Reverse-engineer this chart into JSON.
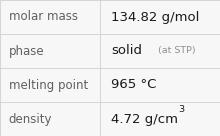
{
  "rows": [
    {
      "label": "molar mass",
      "value": "134.82 g/mol",
      "value_parts": null
    },
    {
      "label": "phase",
      "value_main": "solid",
      "value_sub": "(at STP)",
      "value_parts": "phase"
    },
    {
      "label": "melting point",
      "value": "965 °C",
      "value_parts": null
    },
    {
      "label": "density",
      "value_main": "4.72 g/cm",
      "value_sup": "3",
      "value_parts": "density"
    }
  ],
  "bg_color": "#f7f7f7",
  "cell_bg_color": "#f7f7f7",
  "border_color": "#d0d0d0",
  "label_color": "#606060",
  "value_color": "#1a1a1a",
  "sub_color": "#909090",
  "col_split": 0.455,
  "label_fontsize": 8.5,
  "value_fontsize": 9.5,
  "sub_fontsize": 6.8,
  "sup_fontsize": 6.8
}
